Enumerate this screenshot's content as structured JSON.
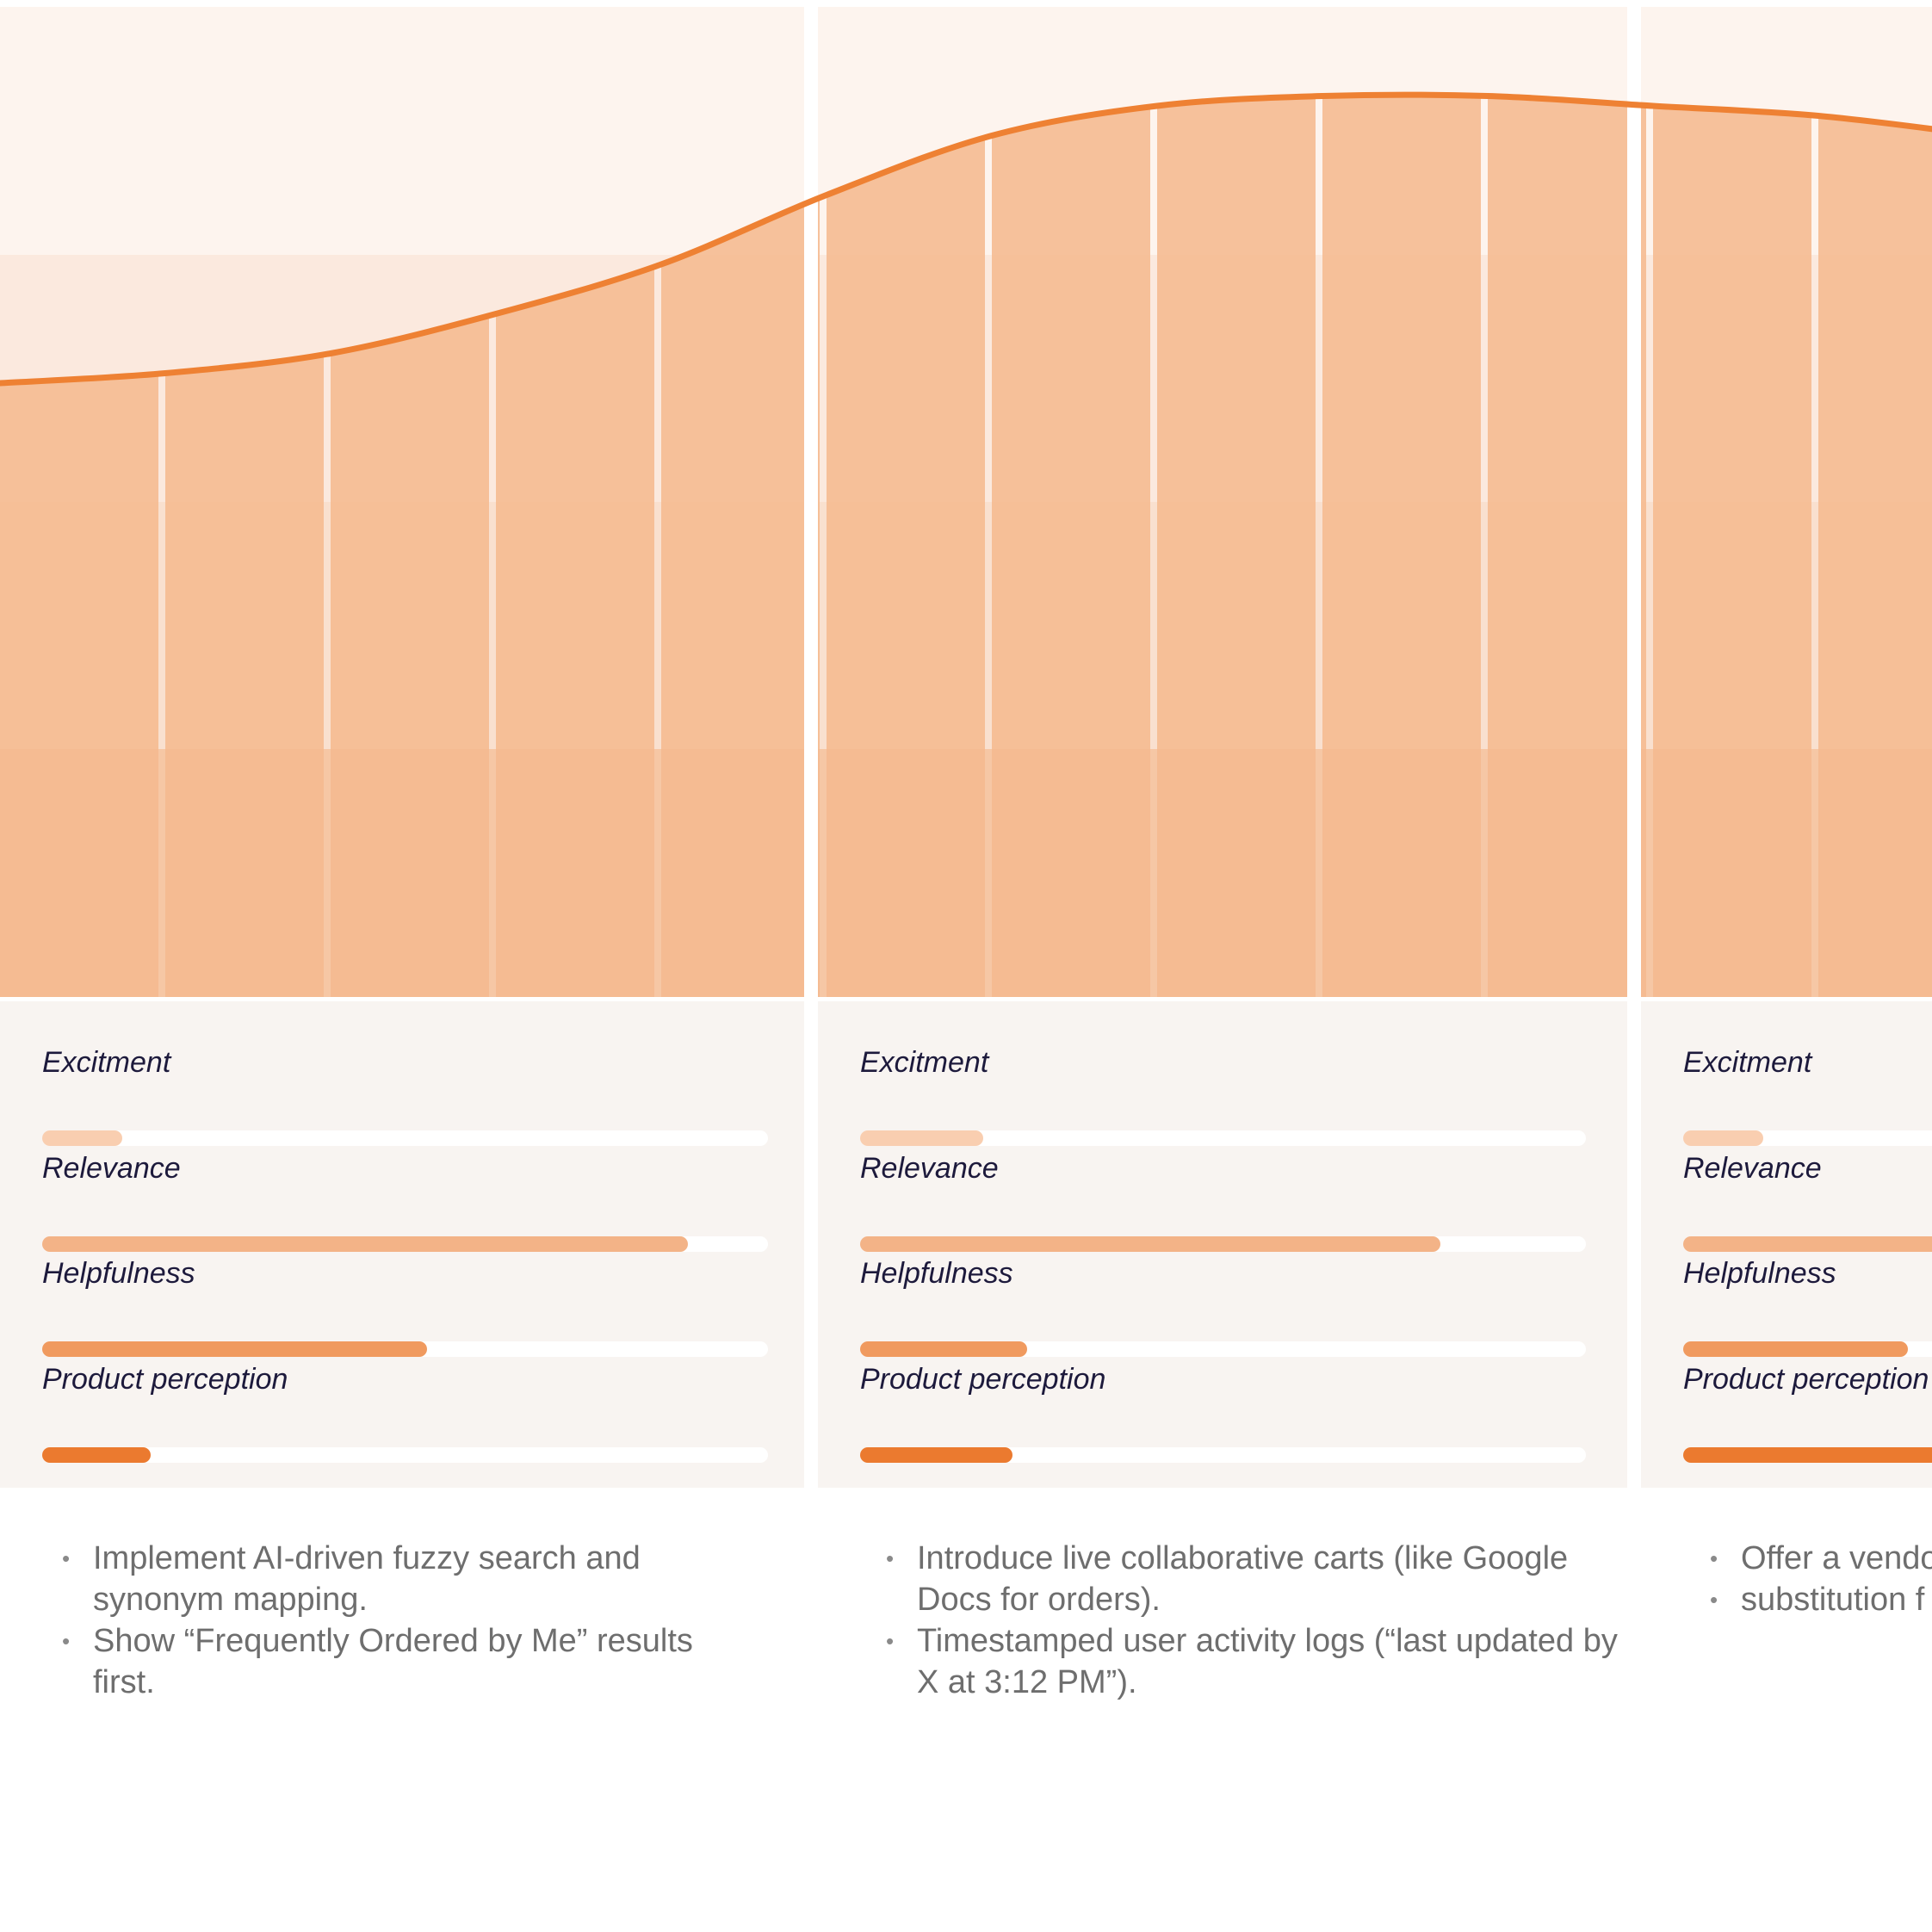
{
  "colors": {
    "band_1": "#fdf4ee",
    "band_2": "#fbe9de",
    "band_3": "#f9e0cf",
    "band_4": "#f6c7a5",
    "area_fill": "#f5b990",
    "curve": "#ee8133",
    "panel_bg": "#f8f4f1",
    "excitement": "#f9ceb0",
    "relevance": "#f3b387",
    "helpfulness": "#f09a5f",
    "product_perception": "#eb7a2f"
  },
  "curve_levels": [
    0.62,
    0.63,
    0.65,
    0.69,
    0.74,
    0.81,
    0.87,
    0.9,
    0.91,
    0.91,
    0.9,
    0.89,
    0.87
  ],
  "columns": [
    {
      "metrics": [
        {
          "label": "Excitment",
          "value": 0.11,
          "color_key": "excitement"
        },
        {
          "label": "Relevance",
          "value": 0.89,
          "color_key": "relevance"
        },
        {
          "label": "Helpfulness",
          "value": 0.53,
          "color_key": "helpfulness"
        },
        {
          "label": "Product perception",
          "value": 0.15,
          "color_key": "product_perception"
        }
      ],
      "notes": [
        "Implement AI-driven fuzzy search and synonym mapping.",
        "Show “Frequently Ordered by Me” results first."
      ]
    },
    {
      "metrics": [
        {
          "label": "Excitment",
          "value": 0.17,
          "color_key": "excitement"
        },
        {
          "label": "Relevance",
          "value": 0.8,
          "color_key": "relevance"
        },
        {
          "label": "Helpfulness",
          "value": 0.23,
          "color_key": "helpfulness"
        },
        {
          "label": "Product perception",
          "value": 0.21,
          "color_key": "product_perception"
        }
      ],
      "notes": [
        "Introduce live collaborative carts (like Google Docs for orders).",
        "Timestamped user activity logs (“last updated by X at 3:12 PM”)."
      ]
    },
    {
      "metrics": [
        {
          "label": "Excitment",
          "value": 0.11,
          "color_key": "excitement"
        },
        {
          "label": "Relevance",
          "value": 0.9,
          "color_key": "relevance"
        },
        {
          "label": "Helpfulness",
          "value": 0.31,
          "color_key": "helpfulness"
        },
        {
          "label": "Product perception",
          "value": 0.9,
          "color_key": "product_perception"
        }
      ],
      "notes": [
        "Offer a vendo",
        "substitution f"
      ]
    }
  ]
}
